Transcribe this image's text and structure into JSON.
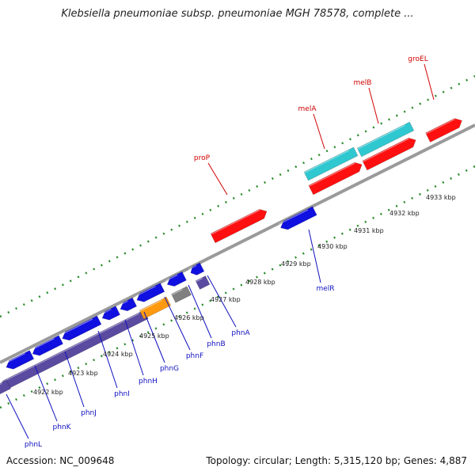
{
  "title": "Klebsiella pneumoniae subsp. pneumoniae MGH 78578, complete ...",
  "footer": {
    "accession": "Accession: NC_009648",
    "stats": "Topology: circular; Length: 5,315,120 bp; Genes: 4,887"
  },
  "colors": {
    "backbone": "#8a8a8a",
    "tick": "#2a8a2a",
    "forward_gene": "#ff1010",
    "reverse_gene": "#1010e0",
    "rna_gene": "#30c8d0",
    "operon": "#5a4aa0",
    "highlight": "#ff9a10",
    "other": "#808080",
    "forward_label": "#d00000",
    "reverse_label": "#1010c0"
  },
  "ticks": [
    "4922 kbp",
    "4923 kbp",
    "4924 kbp",
    "4925 kbp",
    "4926 kbp",
    "4927 kbp",
    "4928 kbp",
    "4929 kbp",
    "4930 kbp",
    "4931 kbp",
    "4932 kbp",
    "4933 kbp"
  ],
  "forward_labels": [
    "proP",
    "melA",
    "melB",
    "groEL"
  ],
  "reverse_labels": [
    "melR",
    "phnA",
    "phnB",
    "phnF",
    "phnG",
    "phnH",
    "phnI",
    "phnJ",
    "phnK",
    "phnL"
  ]
}
